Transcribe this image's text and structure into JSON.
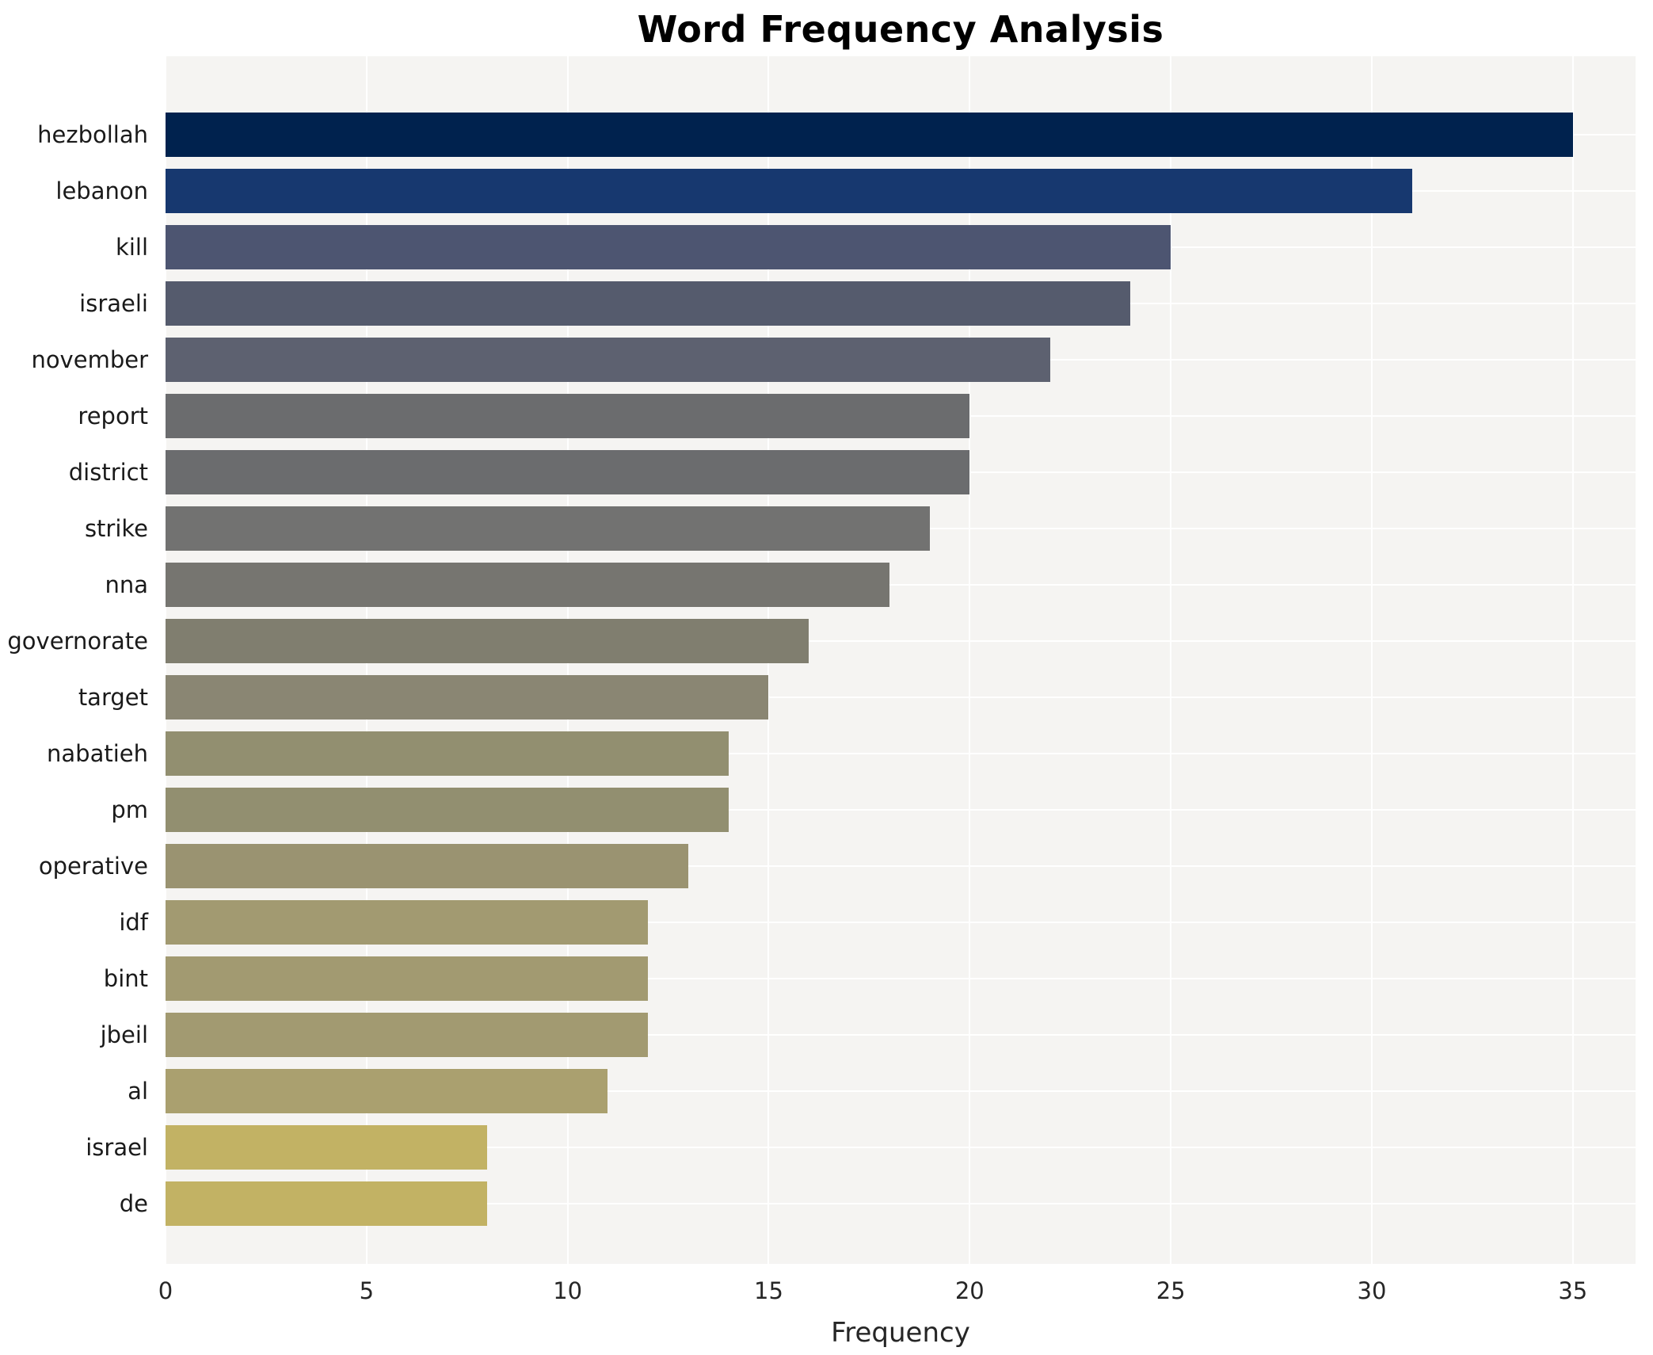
{
  "chart_data": {
    "type": "bar",
    "orientation": "horizontal",
    "title": "Word Frequency Analysis",
    "xlabel": "Frequency",
    "ylabel": "",
    "legend": false,
    "grid": true,
    "colormap": "cividis",
    "xlim": [
      0,
      36.56
    ],
    "xticks": [
      0,
      5,
      10,
      15,
      20,
      25,
      30,
      35
    ],
    "categories": [
      "hezbollah",
      "lebanon",
      "kill",
      "israeli",
      "november",
      "report",
      "district",
      "strike",
      "nna",
      "governorate",
      "target",
      "nabatieh",
      "pm",
      "operative",
      "idf",
      "bint",
      "jbeil",
      "al",
      "israel",
      "de"
    ],
    "values": [
      35,
      31,
      25,
      24,
      22,
      20,
      20,
      19,
      18,
      16,
      15,
      14,
      14,
      13,
      12,
      12,
      12,
      11,
      8,
      8
    ],
    "bar_colors": [
      "#00224e",
      "#17386f",
      "#4d5571",
      "#555b6d",
      "#5d6170",
      "#6b6c6e",
      "#6b6c6e",
      "#727271",
      "#767570",
      "#807e6f",
      "#8a8673",
      "#928f70",
      "#928f70",
      "#9a9371",
      "#a29a71",
      "#a29a71",
      "#a29a71",
      "#aaa06f",
      "#c2b264",
      "#c2b264"
    ],
    "plot_background": "#f5f4f2",
    "gridline_color": "#ffffff",
    "title_color": "#000000",
    "tick_label_color": "#262626"
  }
}
